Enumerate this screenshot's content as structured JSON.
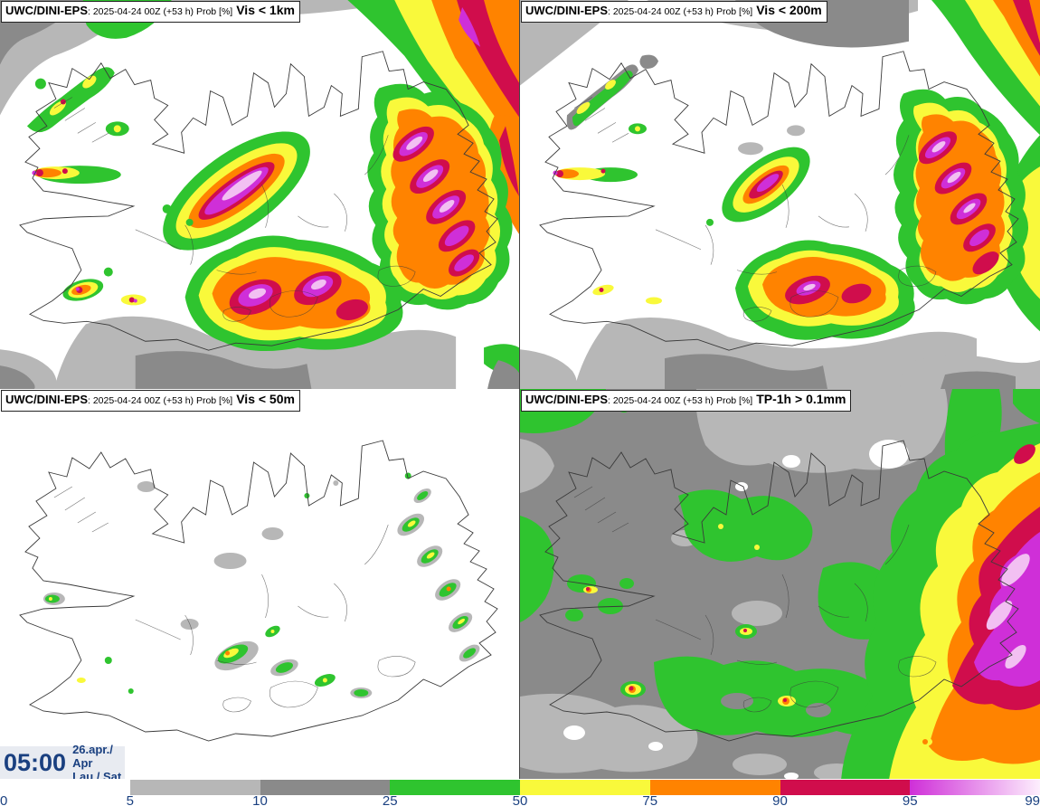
{
  "panels": [
    {
      "model": "UWC/DINI-EPS",
      "run_text": ": 2025-04-24 00Z (+53 h) Prob [%]",
      "param": "Vis < 1km"
    },
    {
      "model": "UWC/DINI-EPS",
      "run_text": ": 2025-04-24 00Z (+53 h) Prob [%]",
      "param": "Vis < 200m"
    },
    {
      "model": "UWC/DINI-EPS",
      "run_text": ": 2025-04-24 00Z (+53 h) Prob [%]",
      "param": "Vis < 50m"
    },
    {
      "model": "UWC/DINI-EPS",
      "run_text": ": 2025-04-24 00Z (+53 h) Prob [%]",
      "param": "TP-1h > 0.1mm"
    }
  ],
  "footer": {
    "time": "05:00",
    "date_line1": "26.apr./ Apr",
    "date_line2": "Lau./ Sat"
  },
  "colorbar": {
    "ticks": [
      "0",
      "5",
      "10",
      "25",
      "50",
      "75",
      "90",
      "95",
      "99"
    ],
    "segments": [
      {
        "from": 0,
        "to": 5,
        "color": "#ffffff"
      },
      {
        "from": 5,
        "to": 10,
        "color": "#b7b7b7"
      },
      {
        "from": 10,
        "to": 25,
        "color": "#8a8a8a"
      },
      {
        "from": 25,
        "to": 50,
        "color": "#2fc42f"
      },
      {
        "from": 50,
        "to": 75,
        "color": "#f9f93b"
      },
      {
        "from": 75,
        "to": 90,
        "color": "#ff8300"
      },
      {
        "from": 90,
        "to": 95,
        "color": "#d00d4c"
      },
      {
        "from": 95,
        "to": 99,
        "color": "#cf2fd8",
        "color_end": "#fdeefd"
      }
    ]
  },
  "palette": {
    "lgray": "#b7b7b7",
    "dgray": "#8a8a8a",
    "green": "#2fc42f",
    "yellow": "#f9f93b",
    "orange": "#ff8300",
    "crimson": "#d00d4c",
    "magenta": "#cf2fd8",
    "pink": "#f2c0f2",
    "coast": "#3a3a3a",
    "navy": "#1a4080",
    "footer_bg": "#e8ebf1"
  }
}
